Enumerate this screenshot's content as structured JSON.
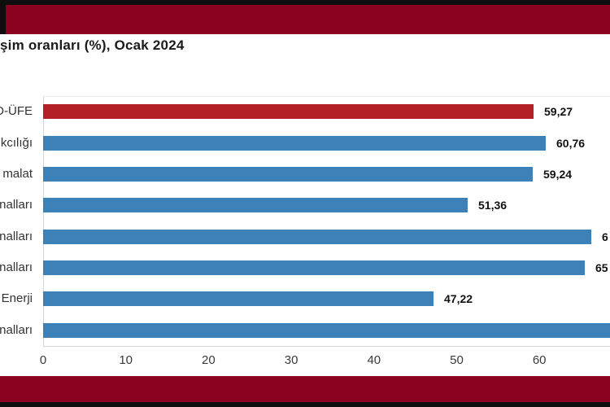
{
  "banner": {
    "maroon_color": "#8B0120",
    "black_edge_color": "#0e0e0e"
  },
  "title": "şim oranları (%), Ocak 2024",
  "chart_data": {
    "type": "bar",
    "orientation": "horizontal",
    "title": "şim oranları (%), Ocak 2024",
    "title_note": "title is clipped at the left edge of the screenshot",
    "categories": [
      "D-ÜFE",
      "kcılığı",
      "malat",
      "nalları",
      "nalları",
      "nalları",
      "Enerji",
      "nalları"
    ],
    "categories_note": "category labels are clipped at the left edge of the screenshot",
    "values": [
      59.27,
      60.76,
      59.24,
      51.36,
      66.3,
      65.5,
      47.22,
      69.0
    ],
    "values_note": "rows 5, 6 and 8 estimated from bar length; their data labels are clipped at the right edge",
    "value_labels": [
      "59,27",
      "60,76",
      "59,24",
      "51,36",
      "6",
      "65",
      "47,22",
      ""
    ],
    "bar_colors": [
      "#B32025",
      "#3C82B9",
      "#3C82B9",
      "#3C82B9",
      "#3C82B9",
      "#3C82B9",
      "#3C82B9",
      "#3C82B9"
    ],
    "accent_red": "#B32025",
    "accent_blue": "#3C82B9",
    "x_ticks": [
      0,
      10,
      20,
      30,
      40,
      50,
      60
    ],
    "x_tick_labels": [
      "0",
      "10",
      "20",
      "30",
      "40",
      "50",
      "60"
    ],
    "xlim": [
      0,
      68.5
    ],
    "xlabel": "",
    "ylabel": "",
    "grid": false,
    "legend": false
  }
}
